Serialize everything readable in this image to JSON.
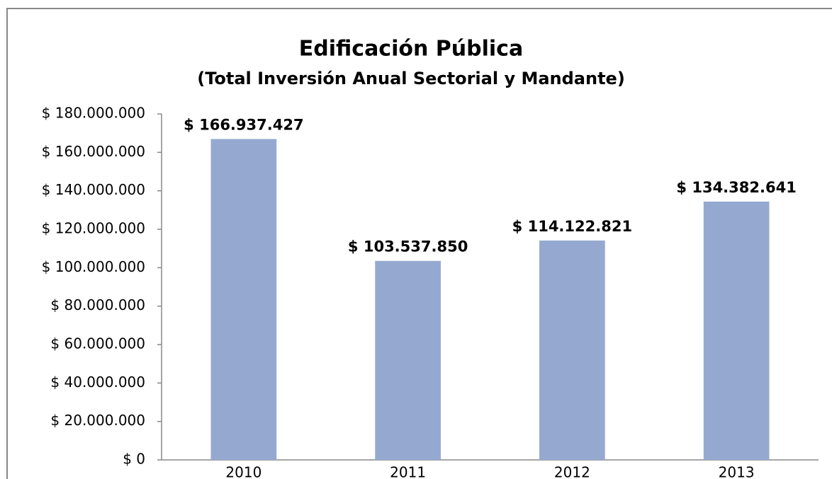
{
  "chart_data": {
    "type": "bar",
    "title": "Edificación Pública",
    "subtitle": "(Total Inversión Anual Sectorial y Mandante)",
    "categories": [
      "2010",
      "2011",
      "2012",
      "2013"
    ],
    "values": [
      166937427,
      103537850,
      114122821,
      134382641
    ],
    "value_labels": [
      "$ 166.937.427",
      "$ 103.537.850",
      "$ 114.122.821",
      "$ 134.382.641"
    ],
    "color": "#95a9d0",
    "ylim": [
      0,
      180000000
    ],
    "yticks": [
      {
        "value": 0,
        "label": "$ 0"
      },
      {
        "value": 20000000,
        "label": "$ 20.000.000"
      },
      {
        "value": 40000000,
        "label": "$ 40.000.000"
      },
      {
        "value": 60000000,
        "label": "$ 60.000.000"
      },
      {
        "value": 80000000,
        "label": "$ 80.000.000"
      },
      {
        "value": 100000000,
        "label": "$ 100.000.000"
      },
      {
        "value": 120000000,
        "label": "$ 120.000.000"
      },
      {
        "value": 140000000,
        "label": "$ 140.000.000"
      },
      {
        "value": 160000000,
        "label": "$ 160.000.000"
      },
      {
        "value": 180000000,
        "label": "$ 180.000.000"
      }
    ],
    "grid": false
  }
}
